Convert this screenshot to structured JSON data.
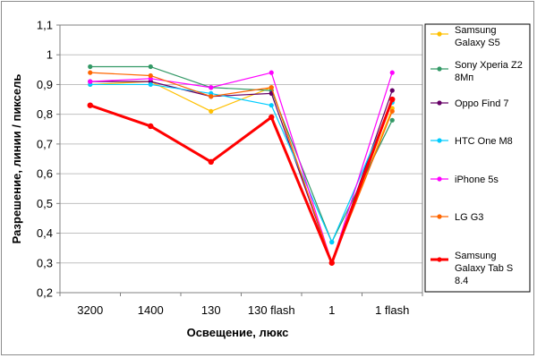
{
  "chart_data": {
    "type": "line",
    "title": "",
    "xlabel": "Освещение, люкс",
    "ylabel": "Разрешение, линии / пиксель",
    "ylim": [
      0.2,
      1.1
    ],
    "yticks": [
      "0,2",
      "0,3",
      "0,4",
      "0,5",
      "0,6",
      "0,7",
      "0,8",
      "0,9",
      "1",
      "1,1"
    ],
    "categories": [
      "3200",
      "1400",
      "130",
      "130 flash",
      "1",
      "1 flash"
    ],
    "grid": "horizontal",
    "legend_position": "right",
    "series": [
      {
        "name": "Samsung Galaxy S5",
        "color": "#ffc000",
        "values": [
          0.9,
          0.91,
          0.81,
          0.89,
          0.3,
          0.82
        ]
      },
      {
        "name": "Sony Xperia Z2 8Мп",
        "color": "#339966",
        "values": [
          0.96,
          0.96,
          0.89,
          0.88,
          0.37,
          0.78
        ]
      },
      {
        "name": "Oppo Find 7",
        "color": "#660066",
        "values": [
          0.91,
          0.91,
          0.86,
          0.87,
          0.3,
          0.88
        ]
      },
      {
        "name": "HTC One M8",
        "color": "#00ccff",
        "values": [
          0.9,
          0.9,
          0.87,
          0.83,
          0.37,
          0.84
        ]
      },
      {
        "name": "iPhone 5s",
        "color": "#ff00ff",
        "values": [
          0.91,
          0.92,
          0.89,
          0.94,
          0.3,
          0.94
        ]
      },
      {
        "name": "LG G3",
        "color": "#ff6600",
        "values": [
          0.94,
          0.93,
          0.86,
          0.89,
          0.3,
          0.81
        ]
      },
      {
        "name": "Samsung Galaxy Tab S 8.4",
        "color": "#ff0000",
        "bold": true,
        "values": [
          0.83,
          0.76,
          0.64,
          0.79,
          0.3,
          0.85
        ]
      }
    ]
  },
  "legend": {
    "entries": [
      {
        "lines": [
          "Samsung",
          "Galaxy S5"
        ]
      },
      {
        "lines": [
          "Sony Xperia Z2",
          "8Мп"
        ]
      },
      {
        "lines": [
          "Oppo Find 7"
        ]
      },
      {
        "lines": [
          "HTC One M8"
        ]
      },
      {
        "lines": [
          "iPhone 5s"
        ]
      },
      {
        "lines": [
          "LG G3"
        ]
      },
      {
        "lines": [
          "Samsung",
          "Galaxy Tab S",
          "8.4"
        ]
      }
    ]
  }
}
